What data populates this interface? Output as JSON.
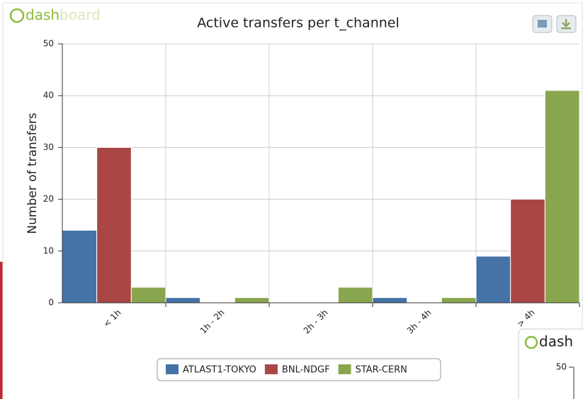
{
  "header": {
    "logo": [
      "dash",
      "board"
    ]
  },
  "chart_data": {
    "type": "bar",
    "title": "Active transfers per t_channel",
    "ylabel": "Number of transfers",
    "categories": [
      "< 1h",
      "1h - 2h",
      "2h - 3h",
      "3h - 4h",
      "> 4h"
    ],
    "series": [
      {
        "name": "ATLAST1-TOKYO",
        "color": "#4572a7",
        "values": [
          14,
          1,
          0,
          1,
          9
        ]
      },
      {
        "name": "BNL-NDGF",
        "color": "#aa4643",
        "values": [
          30,
          0,
          0,
          0,
          20
        ]
      },
      {
        "name": "STAR-CERN",
        "color": "#89a54e",
        "values": [
          3,
          1,
          3,
          1,
          41
        ]
      }
    ],
    "ylim": [
      0,
      50
    ],
    "yticks": [
      0,
      10,
      20,
      30,
      40,
      50
    ],
    "grid": true,
    "legend": "bottom"
  },
  "second_panel": {
    "logo": "dash",
    "ytick": "50"
  }
}
